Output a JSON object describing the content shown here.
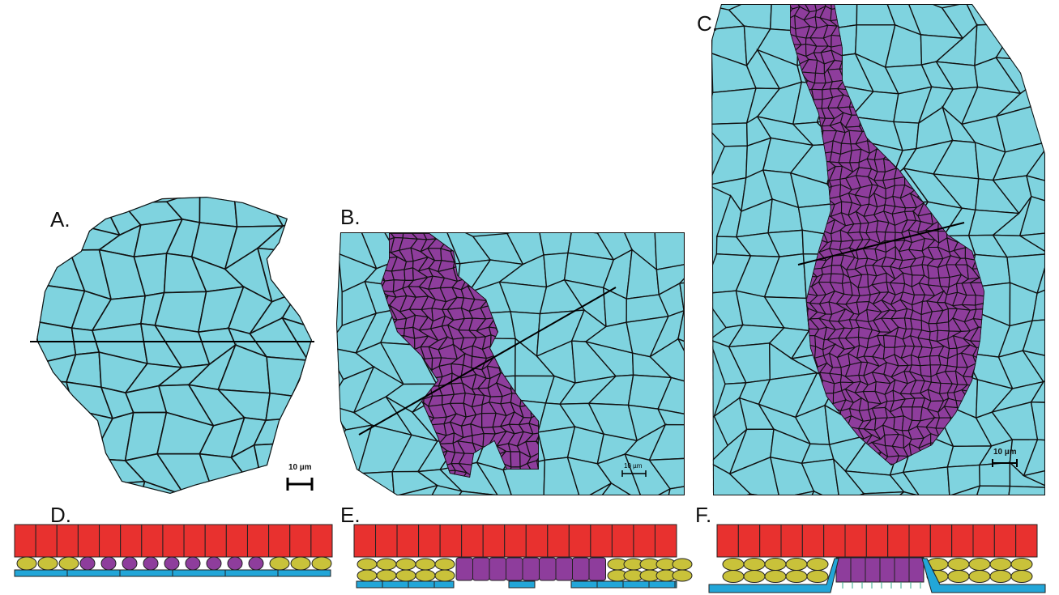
{
  "panels": [
    {
      "label": "A.",
      "scale_label": "10 µm"
    },
    {
      "label": "B.",
      "scale_label": "10 µm"
    },
    {
      "label": "C.",
      "scale_label": "10 µm"
    }
  ],
  "schematics": [
    {
      "label": "D."
    },
    {
      "label": "E."
    },
    {
      "label": "F."
    }
  ]
}
